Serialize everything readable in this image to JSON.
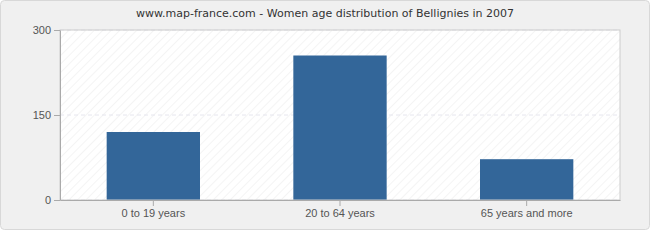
{
  "chart_data": {
    "type": "bar",
    "title": "www.map-france.com - Women age distribution of Bellignies in 2007",
    "categories": [
      "0 to 19 years",
      "20 to 64 years",
      "65 years and more"
    ],
    "values": [
      120,
      255,
      72
    ],
    "color": "#336699",
    "ylim": [
      0,
      300
    ],
    "yticks": [
      0,
      150,
      300
    ],
    "grid": true
  }
}
